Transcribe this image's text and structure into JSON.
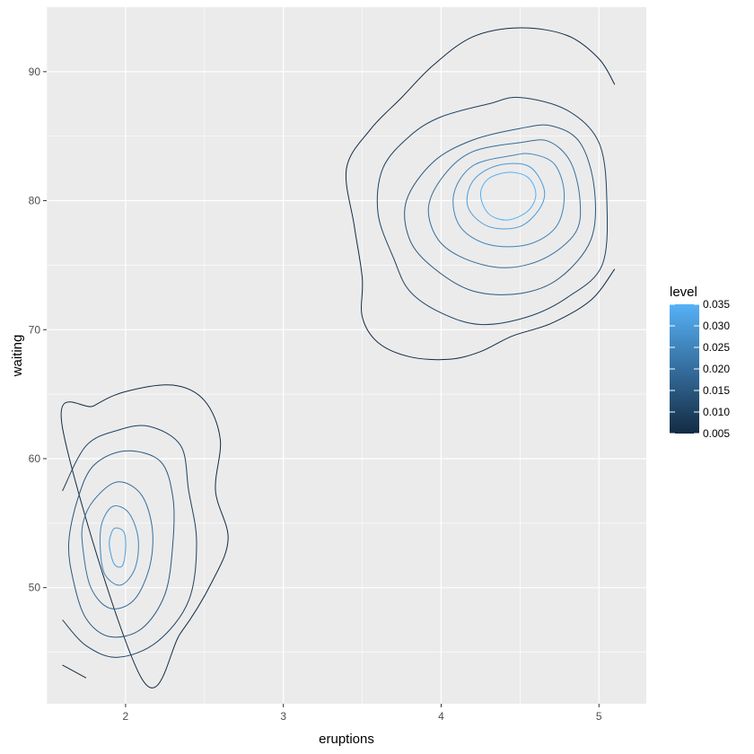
{
  "chart_data": {
    "type": "contour",
    "xlabel": "eruptions",
    "ylabel": "waiting",
    "xlim": [
      1.5,
      5.3
    ],
    "ylim": [
      41,
      95
    ],
    "x_ticks": [
      2,
      3,
      4,
      5
    ],
    "y_ticks": [
      50,
      60,
      70,
      80,
      90
    ],
    "x_tick_labels": [
      "2",
      "3",
      "4",
      "5"
    ],
    "y_tick_labels": [
      "50",
      "60",
      "70",
      "80",
      "90"
    ],
    "grid": true,
    "panel_background": "#EBEBEB",
    "grid_color": "#FFFFFF",
    "legend": {
      "title": "level",
      "placement": "right",
      "breaks": [
        0.005,
        0.01,
        0.015,
        0.02,
        0.025,
        0.03,
        0.035
      ],
      "labels": [
        "0.005",
        "0.010",
        "0.015",
        "0.020",
        "0.025",
        "0.030",
        "0.035"
      ],
      "color_low": "#132B43",
      "color_high": "#56B1F7"
    },
    "clusters": [
      {
        "peak": [
          1.95,
          53
        ],
        "levels": [
          {
            "level": 0.005,
            "points": [
              [
                1.6,
                44.0
              ],
              [
                1.75,
                43.0
              ]
            ]
          },
          {
            "level": 0.005,
            "points": [
              [
                2.1,
                43.0
              ],
              [
                2.35,
                46.5
              ],
              [
                2.55,
                50.5
              ],
              [
                2.65,
                53.8
              ],
              [
                2.57,
                57.5
              ],
              [
                2.6,
                61.5
              ],
              [
                2.5,
                64.5
              ],
              [
                2.3,
                65.7
              ],
              [
                2.0,
                65.2
              ],
              [
                1.8,
                64.1
              ],
              [
                1.6,
                62.4
              ]
            ]
          },
          {
            "level": 0.01,
            "points": [
              [
                1.6,
                47.5
              ],
              [
                1.75,
                45.5
              ],
              [
                1.95,
                44.6
              ],
              [
                2.2,
                45.8
              ],
              [
                2.4,
                49.0
              ],
              [
                2.45,
                53.5
              ],
              [
                2.4,
                57.5
              ],
              [
                2.35,
                61.0
              ],
              [
                2.15,
                62.5
              ],
              [
                1.95,
                62.2
              ],
              [
                1.75,
                61.0
              ],
              [
                1.6,
                57.5
              ]
            ]
          },
          {
            "level": 0.015,
            "points": [
              [
                1.67,
                50.5
              ],
              [
                1.75,
                47.6
              ],
              [
                1.9,
                46.2
              ],
              [
                2.1,
                46.8
              ],
              [
                2.25,
                49.5
              ],
              [
                2.3,
                53.5
              ],
              [
                2.3,
                57.0
              ],
              [
                2.22,
                59.8
              ],
              [
                2.0,
                60.6
              ],
              [
                1.8,
                59.5
              ],
              [
                1.7,
                57.0
              ],
              [
                1.64,
                53.5
              ]
            ]
          },
          {
            "level": 0.02,
            "points": [
              [
                1.73,
                53.0
              ],
              [
                1.78,
                50.0
              ],
              [
                1.9,
                48.4
              ],
              [
                2.05,
                49.0
              ],
              [
                2.15,
                51.5
              ],
              [
                2.17,
                54.5
              ],
              [
                2.1,
                57.2
              ],
              [
                1.95,
                58.2
              ],
              [
                1.8,
                56.8
              ],
              [
                1.73,
                55.0
              ]
            ]
          },
          {
            "level": 0.025,
            "points": [
              [
                1.84,
                53.0
              ],
              [
                1.87,
                51.0
              ],
              [
                1.97,
                50.2
              ],
              [
                2.06,
                51.5
              ],
              [
                2.08,
                53.8
              ],
              [
                2.02,
                55.8
              ],
              [
                1.92,
                56.3
              ],
              [
                1.85,
                55.0
              ]
            ]
          },
          {
            "level": 0.03,
            "points": [
              [
                1.9,
                53.0
              ],
              [
                1.93,
                51.8
              ],
              [
                1.98,
                51.7
              ],
              [
                2.0,
                53.0
              ],
              [
                1.99,
                54.3
              ],
              [
                1.93,
                54.6
              ],
              [
                1.9,
                53.8
              ]
            ]
          }
        ]
      },
      {
        "peak": [
          4.4,
          80.3
        ],
        "levels": [
          {
            "level": 0.005,
            "points": [
              [
                5.1,
                89.0
              ],
              [
                5.0,
                91.0
              ],
              [
                4.8,
                92.8
              ],
              [
                4.5,
                93.4
              ],
              [
                4.2,
                92.7
              ],
              [
                3.95,
                90.5
              ],
              [
                3.75,
                88.0
              ],
              [
                3.55,
                85.5
              ],
              [
                3.4,
                82.5
              ],
              [
                3.45,
                78.0
              ],
              [
                3.5,
                74.0
              ],
              [
                3.5,
                71.0
              ],
              [
                3.6,
                69.0
              ],
              [
                3.8,
                67.9
              ],
              [
                4.05,
                67.7
              ],
              [
                4.25,
                68.3
              ],
              [
                4.45,
                69.5
              ],
              [
                4.7,
                70.5
              ],
              [
                4.95,
                72.3
              ],
              [
                5.1,
                74.7
              ]
            ]
          },
          {
            "level": 0.01,
            "points": [
              [
                4.5,
                88.0
              ],
              [
                4.3,
                87.5
              ],
              [
                4.0,
                86.5
              ],
              [
                3.8,
                85.0
              ],
              [
                3.63,
                82.5
              ],
              [
                3.6,
                79.0
              ],
              [
                3.7,
                75.5
              ],
              [
                3.8,
                73.0
              ],
              [
                4.0,
                71.3
              ],
              [
                4.25,
                70.4
              ],
              [
                4.55,
                71.0
              ],
              [
                4.8,
                72.5
              ],
              [
                5.02,
                75.0
              ],
              [
                5.05,
                80.0
              ],
              [
                5.0,
                84.5
              ],
              [
                4.8,
                87.0
              ]
            ]
          },
          {
            "level": 0.015,
            "points": [
              [
                4.5,
                85.6
              ],
              [
                4.2,
                84.7
              ],
              [
                3.95,
                83.0
              ],
              [
                3.78,
                80.0
              ],
              [
                3.8,
                77.0
              ],
              [
                3.95,
                74.8
              ],
              [
                4.2,
                73.0
              ],
              [
                4.5,
                72.8
              ],
              [
                4.75,
                74.0
              ],
              [
                4.95,
                77.0
              ],
              [
                4.97,
                81.0
              ],
              [
                4.88,
                84.5
              ],
              [
                4.7,
                85.8
              ]
            ]
          },
          {
            "level": 0.02,
            "points": [
              [
                4.5,
                84.5
              ],
              [
                4.2,
                83.8
              ],
              [
                4.02,
                82.0
              ],
              [
                3.92,
                79.5
              ],
              [
                3.98,
                77.0
              ],
              [
                4.15,
                75.5
              ],
              [
                4.4,
                74.8
              ],
              [
                4.65,
                75.5
              ],
              [
                4.85,
                77.5
              ],
              [
                4.88,
                80.0
              ],
              [
                4.82,
                83.0
              ],
              [
                4.68,
                84.6
              ]
            ]
          },
          {
            "level": 0.025,
            "points": [
              [
                4.45,
                83.5
              ],
              [
                4.2,
                82.7
              ],
              [
                4.08,
                80.5
              ],
              [
                4.12,
                78.0
              ],
              [
                4.3,
                76.6
              ],
              [
                4.55,
                76.6
              ],
              [
                4.73,
                78.0
              ],
              [
                4.78,
                80.5
              ],
              [
                4.72,
                82.8
              ],
              [
                4.58,
                83.6
              ]
            ]
          },
          {
            "level": 0.03,
            "points": [
              [
                4.35,
                82.7
              ],
              [
                4.2,
                81.5
              ],
              [
                4.17,
                79.5
              ],
              [
                4.3,
                78.0
              ],
              [
                4.5,
                78.0
              ],
              [
                4.63,
                79.5
              ],
              [
                4.65,
                81.0
              ],
              [
                4.55,
                82.7
              ]
            ]
          },
          {
            "level": 0.035,
            "points": [
              [
                4.3,
                81.7
              ],
              [
                4.25,
                80.5
              ],
              [
                4.3,
                79.0
              ],
              [
                4.42,
                78.5
              ],
              [
                4.55,
                79.2
              ],
              [
                4.6,
                80.5
              ],
              [
                4.55,
                81.8
              ],
              [
                4.43,
                82.2
              ]
            ]
          }
        ]
      }
    ]
  }
}
